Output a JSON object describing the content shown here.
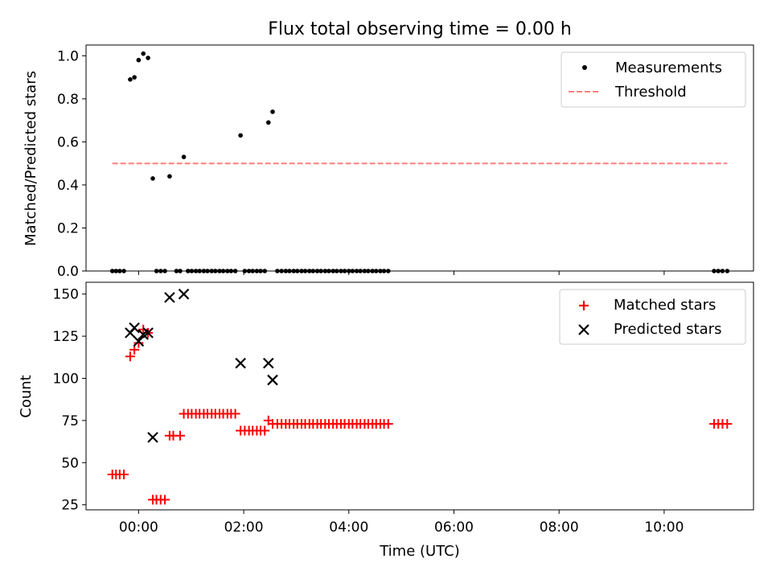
{
  "chart_data": {
    "title": "Flux total observing time = 0.00 h",
    "xlabel": "Time (UTC)",
    "x_units": "hours (UTC, from 00:00)",
    "xlim": [
      -1.0,
      11.7
    ],
    "x_ticks": [
      {
        "value": 0,
        "label": "00:00"
      },
      {
        "value": 2,
        "label": "02:00"
      },
      {
        "value": 4,
        "label": "04:00"
      },
      {
        "value": 6,
        "label": "06:00"
      },
      {
        "value": 8,
        "label": "08:00"
      },
      {
        "value": 10,
        "label": "10:00"
      }
    ],
    "panels": [
      {
        "type": "scatter",
        "ylabel": "Matched/Predicted stars",
        "ylim": [
          0.0,
          1.05
        ],
        "yticks": [
          0.0,
          0.2,
          0.4,
          0.6,
          0.8,
          1.0
        ],
        "ytick_labels": [
          "0.0",
          "0.2",
          "0.4",
          "0.6",
          "0.8",
          "1.0"
        ],
        "legend_position": "upper right",
        "series": [
          {
            "name": "Measurements",
            "kind": "scatter",
            "marker": "dot",
            "color": "#000000",
            "points": [
              [
                -0.5,
                0
              ],
              [
                -0.43,
                0
              ],
              [
                -0.36,
                0
              ],
              [
                -0.28,
                0
              ],
              [
                -0.16,
                0.89
              ],
              [
                -0.08,
                0.9
              ],
              [
                0.0,
                0.98
              ],
              [
                0.09,
                1.01
              ],
              [
                0.18,
                0.99
              ],
              [
                0.27,
                0.43
              ],
              [
                0.34,
                0
              ],
              [
                0.42,
                0
              ],
              [
                0.5,
                0
              ],
              [
                0.59,
                0.44
              ],
              [
                0.72,
                0
              ],
              [
                0.79,
                0
              ],
              [
                0.86,
                0.53
              ],
              [
                0.94,
                0
              ],
              [
                1.01,
                0
              ],
              [
                1.09,
                0
              ],
              [
                1.16,
                0
              ],
              [
                1.24,
                0
              ],
              [
                1.31,
                0
              ],
              [
                1.39,
                0
              ],
              [
                1.46,
                0
              ],
              [
                1.54,
                0
              ],
              [
                1.61,
                0
              ],
              [
                1.69,
                0
              ],
              [
                1.76,
                0
              ],
              [
                1.84,
                0
              ],
              [
                1.94,
                0.63
              ],
              [
                2.02,
                0
              ],
              [
                2.1,
                0
              ],
              [
                2.17,
                0
              ],
              [
                2.25,
                0
              ],
              [
                2.32,
                0
              ],
              [
                2.4,
                0
              ],
              [
                2.47,
                0.69
              ],
              [
                2.55,
                0.74
              ],
              [
                2.64,
                0
              ],
              [
                2.72,
                0
              ],
              [
                2.8,
                0
              ],
              [
                2.87,
                0
              ],
              [
                2.95,
                0
              ],
              [
                3.02,
                0
              ],
              [
                3.1,
                0
              ],
              [
                3.17,
                0
              ],
              [
                3.25,
                0
              ],
              [
                3.32,
                0
              ],
              [
                3.4,
                0
              ],
              [
                3.47,
                0
              ],
              [
                3.55,
                0
              ],
              [
                3.62,
                0
              ],
              [
                3.7,
                0
              ],
              [
                3.77,
                0
              ],
              [
                3.85,
                0
              ],
              [
                3.92,
                0
              ],
              [
                4.0,
                0
              ],
              [
                4.07,
                0
              ],
              [
                4.15,
                0
              ],
              [
                4.22,
                0
              ],
              [
                4.3,
                0
              ],
              [
                4.37,
                0
              ],
              [
                4.45,
                0
              ],
              [
                4.52,
                0
              ],
              [
                4.6,
                0
              ],
              [
                4.67,
                0
              ],
              [
                4.75,
                0
              ],
              [
                10.95,
                0
              ],
              [
                11.03,
                0
              ],
              [
                11.11,
                0
              ],
              [
                11.2,
                0
              ]
            ]
          },
          {
            "name": "Threshold",
            "kind": "line",
            "style": "dashed",
            "color": "#ff7f7f",
            "points": [
              [
                -0.5,
                0.5
              ],
              [
                11.2,
                0.5
              ]
            ]
          }
        ]
      },
      {
        "type": "scatter",
        "ylabel": "Count",
        "ylim": [
          22,
          157
        ],
        "yticks": [
          25,
          50,
          75,
          100,
          125,
          150
        ],
        "ytick_labels": [
          "25",
          "50",
          "75",
          "100",
          "125",
          "150"
        ],
        "legend_position": "upper right",
        "series": [
          {
            "name": "Matched stars",
            "kind": "scatter",
            "marker": "plus",
            "color": "#ff0000",
            "points": [
              [
                -0.5,
                43
              ],
              [
                -0.43,
                43
              ],
              [
                -0.36,
                43
              ],
              [
                -0.28,
                43
              ],
              [
                -0.16,
                113
              ],
              [
                -0.08,
                117
              ],
              [
                0.0,
                121
              ],
              [
                0.09,
                129
              ],
              [
                0.18,
                127
              ],
              [
                0.27,
                28
              ],
              [
                0.34,
                28
              ],
              [
                0.42,
                28
              ],
              [
                0.5,
                28
              ],
              [
                0.59,
                66
              ],
              [
                0.66,
                66
              ],
              [
                0.79,
                66
              ],
              [
                0.86,
                79
              ],
              [
                0.94,
                79
              ],
              [
                1.01,
                79
              ],
              [
                1.09,
                79
              ],
              [
                1.16,
                79
              ],
              [
                1.24,
                79
              ],
              [
                1.31,
                79
              ],
              [
                1.39,
                79
              ],
              [
                1.46,
                79
              ],
              [
                1.54,
                79
              ],
              [
                1.61,
                79
              ],
              [
                1.69,
                79
              ],
              [
                1.76,
                79
              ],
              [
                1.84,
                79
              ],
              [
                1.94,
                69
              ],
              [
                2.02,
                69
              ],
              [
                2.1,
                69
              ],
              [
                2.17,
                69
              ],
              [
                2.25,
                69
              ],
              [
                2.32,
                69
              ],
              [
                2.4,
                69
              ],
              [
                2.47,
                75
              ],
              [
                2.55,
                73
              ],
              [
                2.64,
                73
              ],
              [
                2.72,
                73
              ],
              [
                2.8,
                73
              ],
              [
                2.87,
                73
              ],
              [
                2.95,
                73
              ],
              [
                3.02,
                73
              ],
              [
                3.1,
                73
              ],
              [
                3.17,
                73
              ],
              [
                3.25,
                73
              ],
              [
                3.32,
                73
              ],
              [
                3.4,
                73
              ],
              [
                3.47,
                73
              ],
              [
                3.55,
                73
              ],
              [
                3.62,
                73
              ],
              [
                3.7,
                73
              ],
              [
                3.77,
                73
              ],
              [
                3.85,
                73
              ],
              [
                3.92,
                73
              ],
              [
                4.0,
                73
              ],
              [
                4.07,
                73
              ],
              [
                4.15,
                73
              ],
              [
                4.22,
                73
              ],
              [
                4.3,
                73
              ],
              [
                4.37,
                73
              ],
              [
                4.45,
                73
              ],
              [
                4.52,
                73
              ],
              [
                4.6,
                73
              ],
              [
                4.67,
                73
              ],
              [
                4.75,
                73
              ],
              [
                10.95,
                73
              ],
              [
                11.03,
                73
              ],
              [
                11.11,
                73
              ],
              [
                11.2,
                73
              ]
            ]
          },
          {
            "name": "Predicted stars",
            "kind": "scatter",
            "marker": "x",
            "color": "#000000",
            "points": [
              [
                -0.16,
                127
              ],
              [
                -0.08,
                130
              ],
              [
                0.0,
                122
              ],
              [
                0.09,
                126
              ],
              [
                0.18,
                127
              ],
              [
                0.27,
                65
              ],
              [
                0.59,
                148
              ],
              [
                0.86,
                150
              ],
              [
                1.94,
                109
              ],
              [
                2.47,
                109
              ],
              [
                2.55,
                99
              ]
            ]
          }
        ]
      }
    ]
  }
}
